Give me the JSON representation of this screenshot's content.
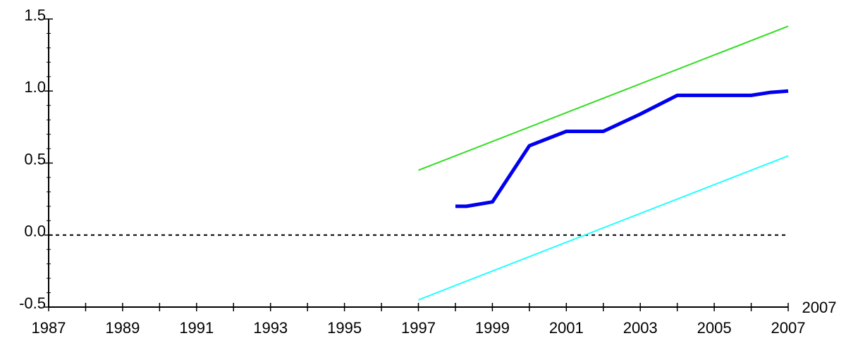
{
  "chart_data": {
    "type": "line",
    "xlim": [
      1987,
      2007
    ],
    "xticks": [
      1987,
      1989,
      1991,
      1993,
      1995,
      1997,
      1999,
      2001,
      2003,
      2005,
      2007
    ],
    "ylim": [
      -0.5,
      1.5
    ],
    "yticks": [
      {
        "value": -0.5,
        "label": "-0.5"
      },
      {
        "value": 0,
        "label": "0.0"
      },
      0.5,
      {
        "value": 1,
        "label": "1.0"
      },
      1.5
    ],
    "reference_line": 0,
    "extra_label": "2007",
    "series": [
      {
        "color": "#33dd22",
        "line_width": 2,
        "x": [
          1997,
          2007
        ],
        "values": [
          0.45,
          1.45
        ]
      },
      {
        "color": "#22ffff",
        "line_width": 2,
        "x": [
          1997,
          2007
        ],
        "values": [
          -0.45,
          0.55
        ]
      },
      {
        "color": "#0000ee",
        "line_width": 5,
        "x": [
          1998,
          1998.3,
          1999,
          2000,
          2001,
          2002,
          2003,
          2004,
          2005,
          2006,
          2006.5,
          2007
        ],
        "values": [
          0.2,
          0.2,
          0.23,
          0.62,
          0.72,
          0.72,
          0.84,
          0.97,
          0.97,
          0.97,
          0.99,
          1.0
        ]
      }
    ]
  }
}
